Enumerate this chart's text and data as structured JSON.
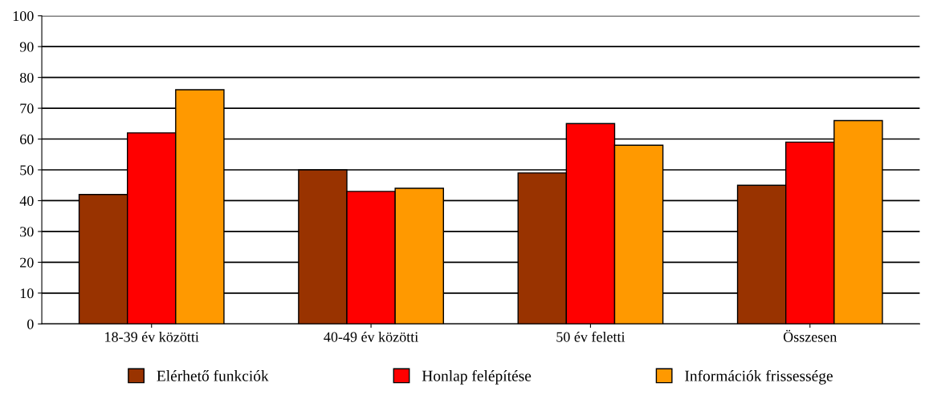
{
  "chart_data": {
    "type": "bar",
    "categories": [
      "18-39 év közötti",
      "40-49 év közötti",
      "50 év feletti",
      "Összesen"
    ],
    "series": [
      {
        "name": "Elérhető funkciók",
        "color": "#993300",
        "values": [
          42,
          50,
          49,
          45
        ]
      },
      {
        "name": "Honlap felépítése",
        "color": "#ff0000",
        "values": [
          62,
          43,
          65,
          59
        ]
      },
      {
        "name": "Információk frissessége",
        "color": "#ff9900",
        "values": [
          76,
          44,
          58,
          66
        ]
      }
    ],
    "ylim": [
      0,
      100
    ],
    "yticks": [
      0,
      10,
      20,
      30,
      40,
      50,
      60,
      70,
      80,
      90,
      100
    ],
    "grid": "y",
    "legend": "bottom"
  }
}
